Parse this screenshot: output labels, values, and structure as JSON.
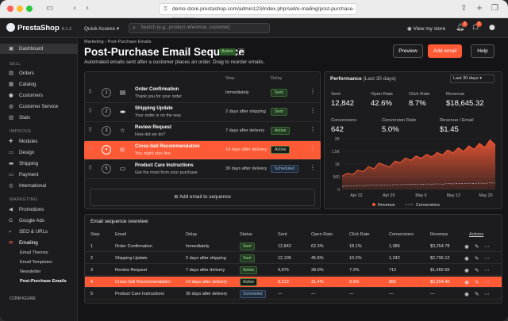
{
  "browser": {
    "url": "demo-store.prestashop.com/admin123/index.php/sell/e-mailing/post-purchase-sequence"
  },
  "topbar": {
    "logo": "PrestaShop",
    "version": "8.1.2",
    "quick_access": "Quick Access",
    "search_placeholder": "Search (e.g., product reference, customer)",
    "view_store": "View my store",
    "notif_count_1": "1",
    "notif_count_2": "2"
  },
  "sidebar": {
    "dashboard": "Dashboard",
    "sections": {
      "sell": "SELL",
      "improve": "IMPROVE",
      "marketing": "MARKETING",
      "configure": "CONFIGURE"
    },
    "sell_items": [
      "Orders",
      "Catalog",
      "Customers",
      "Customer Service",
      "Stats"
    ],
    "improve_items": [
      "Modules",
      "Design",
      "Shipping",
      "Payment",
      "International"
    ],
    "marketing_items": [
      "Promotions",
      "Google Ads",
      "SEO & URLs",
      "Emailing"
    ],
    "emailing_sub": [
      "Email Themes",
      "Email Templates",
      "Newsletter",
      "Post-Purchase Emails"
    ]
  },
  "header": {
    "breadcrumb": "Marketing  ›  Post-Purchase Emails",
    "title": "Post-Purchase Email Sequence",
    "status": "Active",
    "description": "Automated emails sent after a customer places an order. Drag to reorder emails.",
    "preview_label": "Preview",
    "add_email_label": "Add email",
    "help_label": "Help"
  },
  "sequence": {
    "col_step": "Step",
    "col_delay": "Delay",
    "add_label": "Add email to sequence",
    "rows": [
      {
        "num": "1",
        "title": "Order Confirmation",
        "subtitle": "Thank you for your order",
        "step": "Immediately",
        "status": "Sent"
      },
      {
        "num": "2",
        "title": "Shipping Update",
        "subtitle": "Your order is on the way",
        "step": "2 days after shipping",
        "status": "Sent"
      },
      {
        "num": "3",
        "title": "Review Request",
        "subtitle": "How did we do?",
        "step": "7 days after delivery",
        "status": "Active"
      },
      {
        "num": "4",
        "title": "Cross-Sell Recommendation",
        "subtitle": "You might also like",
        "step": "14 days after delivery",
        "status": "Active"
      },
      {
        "num": "5",
        "title": "Product Care Instructions",
        "subtitle": "Get the most from your purchase",
        "step": "30 days after delivery",
        "status": "Scheduled"
      }
    ]
  },
  "performance": {
    "title": "Performance",
    "period": "(Last 30 days)",
    "range": "Last 30 days",
    "metrics": [
      {
        "label": "Sent",
        "value": "12,842"
      },
      {
        "label": "Open Rate",
        "value": "42.6%"
      },
      {
        "label": "Click Rate",
        "value": "8.7%"
      },
      {
        "label": "Revenue",
        "value": "$18,645.32"
      },
      {
        "label": "Conversions",
        "value": "642"
      },
      {
        "label": "Conversion Rate",
        "value": "5.0%"
      },
      {
        "label": "Revenue / Email",
        "value": "$1.45"
      }
    ],
    "colors": {
      "revenue": "#ff5a36",
      "conversions": "#bbbbbb"
    }
  },
  "chart_data": {
    "type": "area",
    "x_ticks": [
      "Apr 22",
      "Apr 29",
      "May 6",
      "May 13",
      "May 20"
    ],
    "y_ticks": [
      "0",
      "500",
      "1K",
      "1.5K",
      "2K"
    ],
    "ylim": [
      0,
      2000
    ],
    "legend": [
      "Revenue",
      "Conversions"
    ],
    "legend_position": "bottom",
    "series": [
      {
        "name": "Revenue",
        "values": [
          520,
          640,
          580,
          760,
          700,
          900,
          820,
          1040,
          960,
          880,
          1120,
          1060,
          1240,
          1150,
          1320,
          1230,
          1380,
          1280,
          1460,
          1360,
          1560,
          1440,
          1640,
          1500,
          1720,
          1580,
          1820,
          1660,
          1950,
          1760
        ]
      },
      {
        "name": "Conversions",
        "values": [
          120,
          140,
          130,
          160,
          150,
          170,
          165,
          180,
          175,
          170,
          190,
          185,
          200,
          195,
          210,
          200,
          215,
          205,
          220,
          210,
          230,
          220,
          240,
          225,
          245,
          235,
          250,
          240,
          260,
          250
        ]
      }
    ]
  },
  "overview": {
    "title": "Email sequence overview",
    "headers": [
      "Step",
      "Email",
      "Delay",
      "Status",
      "Sent",
      "Open Rate",
      "Click Rate",
      "Conversions",
      "Revenue",
      "Actions"
    ],
    "rows": [
      [
        "1",
        "Order Confirmation",
        "Immediately",
        "Sent",
        "12,842",
        "62.3%",
        "18.1%",
        "1,986",
        "$3,254.78"
      ],
      [
        "2",
        "Shipping Update",
        "2 days after shipping",
        "Sent",
        "12,105",
        "45.8%",
        "10.2%",
        "1,242",
        "$2,796.12"
      ],
      [
        "3",
        "Review Request",
        "7 days after delivery",
        "Active",
        "9,876",
        "38.9%",
        "7.2%",
        "712",
        "$1,482.65"
      ],
      [
        "4",
        "Cross-Sell Recommendation",
        "14 days after delivery",
        "Active",
        "9,213",
        "31.4%",
        "9.6%",
        "882",
        "$2,254.40"
      ],
      [
        "5",
        "Product Care Instructions",
        "30 days after delivery",
        "Scheduled",
        "—",
        "—",
        "—",
        "—",
        "—"
      ]
    ]
  }
}
